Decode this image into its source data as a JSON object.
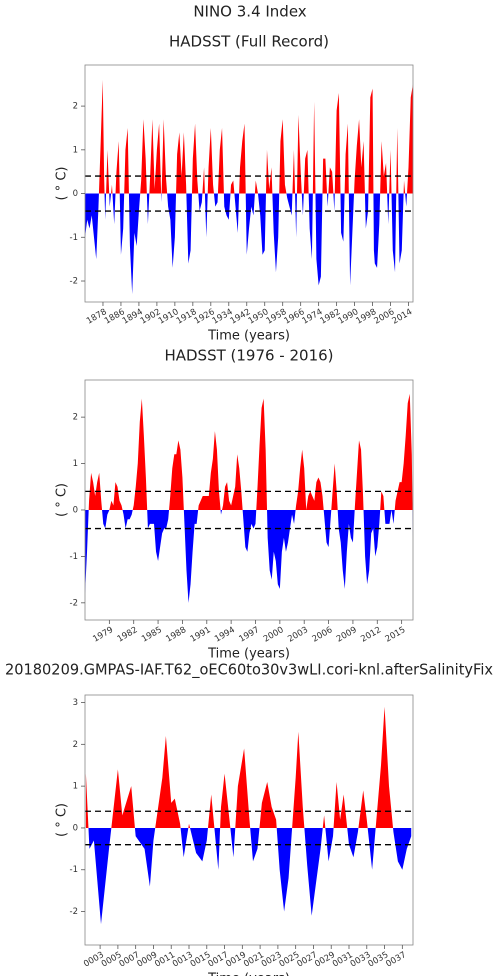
{
  "title": "NINO 3.4 Index",
  "chart_data": [
    {
      "type": "area",
      "title": "HADSST (Full Record)",
      "x_label": "Time (years)",
      "y_label": "( ° C)",
      "pos_color": "#ff0000",
      "neg_color": "#0000ff",
      "hlines": [
        0.4,
        -0.4
      ],
      "xlim": [
        1870,
        2016
      ],
      "ylim": [
        -2.48,
        2.94
      ],
      "xticks": [
        1878,
        1886,
        1894,
        1902,
        1910,
        1918,
        1926,
        1934,
        1942,
        1950,
        1958,
        1966,
        1974,
        1982,
        1990,
        1998,
        2006,
        2014
      ],
      "yticks": [
        -2,
        -1,
        0,
        1,
        2
      ],
      "x": [
        1870,
        1871,
        1872,
        1873,
        1874,
        1875,
        1876,
        1877,
        1877.9,
        1878.5,
        1879,
        1880,
        1881,
        1882,
        1883,
        1884,
        1885,
        1886,
        1887,
        1888,
        1889,
        1890,
        1891,
        1892,
        1893,
        1894,
        1895,
        1896,
        1897,
        1898,
        1899,
        1900,
        1901,
        1902,
        1903,
        1904,
        1905,
        1906,
        1907,
        1908,
        1909,
        1910,
        1911,
        1912,
        1913,
        1914,
        1915,
        1916,
        1917,
        1918,
        1919,
        1920,
        1921,
        1922,
        1923,
        1924,
        1925,
        1926,
        1927,
        1928,
        1929,
        1930,
        1931,
        1932,
        1933,
        1934,
        1935,
        1936,
        1937,
        1938,
        1939,
        1940,
        1941,
        1942,
        1943,
        1944,
        1945,
        1946,
        1947,
        1948,
        1949,
        1950,
        1951,
        1952,
        1953,
        1954,
        1955,
        1956,
        1957,
        1958,
        1959,
        1960,
        1961,
        1962,
        1963,
        1964,
        1965,
        1966,
        1967,
        1968,
        1969,
        1970,
        1971,
        1972,
        1973,
        1974,
        1975,
        1976,
        1977,
        1978,
        1979,
        1980,
        1981,
        1982,
        1983,
        1984,
        1985,
        1986,
        1987,
        1988,
        1989,
        1990,
        1991,
        1992,
        1993,
        1994,
        1995,
        1996,
        1997,
        1998,
        1998.6,
        1999,
        2000,
        2001,
        2002,
        2003,
        2004,
        2005,
        2006,
        2007,
        2008,
        2009,
        2010,
        2011,
        2012,
        2013,
        2014,
        2015,
        2016
      ],
      "values": [
        -1.0,
        -0.6,
        -0.8,
        -0.5,
        -1.0,
        -1.5,
        -0.3,
        1.2,
        2.6,
        0.4,
        -0.6,
        1.0,
        -0.3,
        0.2,
        -0.7,
        0.5,
        1.2,
        -1.4,
        -0.8,
        1.0,
        1.5,
        -1.2,
        -2.3,
        -0.9,
        -1.2,
        -0.4,
        0.3,
        1.7,
        0.8,
        -0.7,
        0.4,
        1.7,
        0.1,
        1.0,
        1.6,
        -0.2,
        1.7,
        0.4,
        -0.3,
        -0.6,
        -1.7,
        -1.0,
        0.9,
        1.4,
        0.4,
        1.4,
        0.2,
        -1.6,
        -1.3,
        0.8,
        1.6,
        0.3,
        -0.4,
        -0.2,
        0.6,
        -1.0,
        0.6,
        1.5,
        0.2,
        -0.3,
        -0.2,
        1.0,
        1.5,
        -0.3,
        -0.5,
        -0.6,
        0.2,
        0.3,
        -0.3,
        -0.9,
        0.6,
        1.2,
        1.6,
        -1.4,
        -0.8,
        -0.3,
        -0.5,
        0.3,
        0.0,
        -0.5,
        -1.4,
        -1.3,
        1.0,
        0.1,
        0.6,
        -0.9,
        -1.8,
        -1.0,
        1.2,
        1.7,
        0.2,
        -0.1,
        -0.3,
        -0.5,
        1.0,
        -1.0,
        1.8,
        0.5,
        -0.5,
        0.8,
        1.0,
        -0.8,
        -1.5,
        2.1,
        -1.5,
        -2.1,
        -1.9,
        0.8,
        0.8,
        -0.3,
        0.6,
        0.5,
        -0.4,
        1.9,
        2.3,
        -0.9,
        -1.1,
        0.9,
        1.6,
        -2.1,
        -0.9,
        0.3,
        1.1,
        1.7,
        0.6,
        1.2,
        -0.8,
        -0.4,
        2.2,
        2.4,
        -1.3,
        -1.6,
        -1.7,
        -0.7,
        1.2,
        0.4,
        0.7,
        -0.7,
        1.0,
        -1.3,
        -1.8,
        1.5,
        -1.6,
        -1.3,
        0.3,
        -0.3,
        0.6,
        2.2,
        2.5
      ]
    },
    {
      "type": "area",
      "title": "HADSST (1976 - 2016)",
      "x_label": "Time (years)",
      "y_label": "( ° C)",
      "pos_color": "#ff0000",
      "neg_color": "#0000ff",
      "hlines": [
        0.4,
        -0.4
      ],
      "xlim": [
        1976,
        2016.4
      ],
      "ylim": [
        -2.37,
        2.8
      ],
      "xticks": [
        1979,
        1982,
        1985,
        1988,
        1991,
        1994,
        1997,
        2000,
        2003,
        2006,
        2009,
        2012,
        2015
      ],
      "yticks": [
        -2,
        -1,
        0,
        1,
        2
      ],
      "x": [
        1976,
        1976.25,
        1976.5,
        1976.75,
        1977,
        1977.25,
        1977.5,
        1977.75,
        1978,
        1978.25,
        1978.5,
        1978.75,
        1979,
        1979.25,
        1979.5,
        1979.75,
        1980,
        1980.25,
        1980.5,
        1980.75,
        1981,
        1981.25,
        1981.5,
        1981.75,
        1982,
        1982.25,
        1982.5,
        1982.75,
        1983,
        1983.25,
        1983.5,
        1983.75,
        1984,
        1984.25,
        1984.5,
        1984.75,
        1985,
        1985.25,
        1985.5,
        1985.75,
        1986,
        1986.25,
        1986.5,
        1986.75,
        1987,
        1987.25,
        1987.5,
        1987.75,
        1988,
        1988.25,
        1988.5,
        1988.75,
        1989,
        1989.25,
        1989.5,
        1989.75,
        1990,
        1990.25,
        1990.5,
        1990.75,
        1991,
        1991.25,
        1991.5,
        1991.75,
        1992,
        1992.25,
        1992.5,
        1992.75,
        1993,
        1993.25,
        1993.5,
        1993.75,
        1994,
        1994.25,
        1994.5,
        1994.75,
        1995,
        1995.25,
        1995.5,
        1995.75,
        1996,
        1996.25,
        1996.5,
        1996.75,
        1997,
        1997.25,
        1997.5,
        1997.75,
        1998,
        1998.25,
        1998.5,
        1998.75,
        1999,
        1999.25,
        1999.5,
        1999.75,
        2000,
        2000.25,
        2000.5,
        2000.75,
        2001,
        2001.25,
        2001.5,
        2001.75,
        2002,
        2002.25,
        2002.5,
        2002.75,
        2003,
        2003.25,
        2003.5,
        2003.75,
        2004,
        2004.25,
        2004.5,
        2004.75,
        2005,
        2005.25,
        2005.5,
        2005.75,
        2006,
        2006.25,
        2006.5,
        2006.75,
        2007,
        2007.25,
        2007.5,
        2007.75,
        2008,
        2008.25,
        2008.5,
        2008.75,
        2009,
        2009.25,
        2009.5,
        2009.75,
        2010,
        2010.25,
        2010.5,
        2010.75,
        2011,
        2011.25,
        2011.5,
        2011.75,
        2012,
        2012.25,
        2012.5,
        2012.75,
        2013,
        2013.25,
        2013.5,
        2013.75,
        2014,
        2014.25,
        2014.5,
        2014.75,
        2015,
        2015.25,
        2015.5,
        2015.75,
        2016,
        2016.25,
        2016.4
      ],
      "values": [
        -1.8,
        -0.9,
        0.2,
        0.8,
        0.6,
        0.3,
        0.6,
        0.8,
        0.2,
        -0.3,
        -0.4,
        -0.1,
        0.0,
        0.2,
        0.1,
        0.6,
        0.5,
        0.2,
        0.1,
        -0.1,
        -0.4,
        -0.2,
        -0.2,
        -0.1,
        0.1,
        0.5,
        1.0,
        1.9,
        2.4,
        1.6,
        0.7,
        -0.4,
        -0.3,
        -0.3,
        -0.3,
        -0.9,
        -1.1,
        -0.8,
        -0.5,
        -0.4,
        -0.4,
        -0.2,
        0.3,
        0.9,
        1.2,
        1.2,
        1.5,
        1.3,
        0.7,
        -0.3,
        -1.3,
        -2.0,
        -1.6,
        -0.9,
        -0.3,
        -0.3,
        0.1,
        0.2,
        0.3,
        0.3,
        0.3,
        0.3,
        0.8,
        1.1,
        1.7,
        1.3,
        0.4,
        -0.1,
        0.1,
        0.5,
        0.6,
        0.2,
        0.1,
        0.3,
        0.5,
        1.2,
        0.9,
        0.4,
        -0.2,
        -0.8,
        -0.9,
        -0.5,
        -0.3,
        -0.4,
        -0.3,
        0.5,
        1.4,
        2.2,
        2.4,
        1.3,
        -0.6,
        -1.3,
        -1.5,
        -0.9,
        -1.1,
        -1.6,
        -1.7,
        -0.9,
        -0.6,
        -0.9,
        -0.7,
        -0.4,
        -0.1,
        -0.3,
        0.1,
        0.4,
        0.9,
        1.3,
        0.9,
        0.0,
        0.3,
        0.4,
        0.3,
        0.2,
        0.6,
        0.7,
        0.6,
        0.3,
        -0.2,
        -0.7,
        -0.8,
        -0.2,
        0.4,
        1.0,
        0.4,
        -0.4,
        -0.7,
        -1.3,
        -1.7,
        -0.9,
        -0.3,
        -0.6,
        -0.7,
        0.1,
        0.8,
        1.5,
        1.3,
        0.3,
        -1.0,
        -1.6,
        -1.3,
        -0.5,
        -0.4,
        -1.0,
        -0.8,
        -0.3,
        0.4,
        0.3,
        -0.3,
        -0.3,
        -0.3,
        0.0,
        -0.3,
        0.2,
        0.4,
        0.6,
        0.6,
        1.0,
        1.6,
        2.3,
        2.5,
        1.2,
        -0.6
      ]
    },
    {
      "type": "area",
      "title": "20180209.GMPAS-IAF.T62_oEC60to30v3wLI.cori-knl.afterSalinityFix",
      "x_label": "Time (years)",
      "y_label": "( ° C)",
      "pos_color": "#ff0000",
      "neg_color": "#0000ff",
      "hlines": [
        0.4,
        -0.4
      ],
      "xlim": [
        1.3,
        38.2
      ],
      "ylim": [
        -2.8,
        3.18
      ],
      "xticks": [
        {
          "value": 3,
          "label": "0003"
        },
        {
          "value": 5,
          "label": "0005"
        },
        {
          "value": 7,
          "label": "0007"
        },
        {
          "value": 9,
          "label": "0009"
        },
        {
          "value": 11,
          "label": "0011"
        },
        {
          "value": 13,
          "label": "0013"
        },
        {
          "value": 15,
          "label": "0015"
        },
        {
          "value": 17,
          "label": "0017"
        },
        {
          "value": 19,
          "label": "0019"
        },
        {
          "value": 21,
          "label": "0021"
        },
        {
          "value": 23,
          "label": "0023"
        },
        {
          "value": 25,
          "label": "0025"
        },
        {
          "value": 27,
          "label": "0027"
        },
        {
          "value": 29,
          "label": "0029"
        },
        {
          "value": 31,
          "label": "0031"
        },
        {
          "value": 33,
          "label": "0033"
        },
        {
          "value": 35,
          "label": "0035"
        },
        {
          "value": 37,
          "label": "0037"
        }
      ],
      "yticks": [
        -2,
        -1,
        0,
        1,
        2,
        3
      ],
      "x": [
        1.4,
        1.8,
        2.3,
        3.1,
        4,
        5,
        5.5,
        6.5,
        7,
        8,
        8.6,
        9,
        10,
        10.4,
        11,
        11.4,
        12,
        12.4,
        13,
        13.8,
        14.5,
        15,
        15.5,
        16.3,
        16.6,
        17,
        17.5,
        18,
        18.5,
        19.2,
        19.8,
        20.2,
        20.7,
        21.2,
        21.8,
        22.3,
        22.8,
        23.2,
        23.7,
        24.2,
        24.6,
        25,
        25.3,
        25.8,
        26.3,
        26.8,
        27.3,
        27.8,
        28.2,
        28.7,
        29.2,
        29.6,
        30,
        30.4,
        31,
        31.5,
        32,
        32.6,
        33,
        33.6,
        34,
        34.6,
        35,
        35.5,
        36,
        36.5,
        37,
        37.5,
        38
      ],
      "values": [
        1.3,
        -0.5,
        -0.3,
        -2.3,
        -0.5,
        1.4,
        0.3,
        1.0,
        -0.2,
        -0.5,
        -1.4,
        -0.3,
        1.2,
        2.2,
        0.6,
        0.7,
        0.1,
        -0.7,
        0.1,
        -0.6,
        -0.8,
        -0.3,
        0.8,
        -1.0,
        0.5,
        1.3,
        0.3,
        -0.7,
        1.0,
        1.9,
        0.2,
        -0.8,
        -0.5,
        0.6,
        1.1,
        0.5,
        0.2,
        -1.0,
        -2.0,
        -1.2,
        0.0,
        1.2,
        2.3,
        0.5,
        -0.9,
        -2.1,
        -1.3,
        -0.5,
        0.3,
        -0.8,
        -0.2,
        1.1,
        0.2,
        0.8,
        -0.4,
        -0.7,
        -0.1,
        0.9,
        0.2,
        -1.0,
        0.0,
        1.5,
        2.9,
        1.0,
        -0.1,
        -0.8,
        -1.0,
        -0.5,
        -0.2
      ]
    }
  ]
}
